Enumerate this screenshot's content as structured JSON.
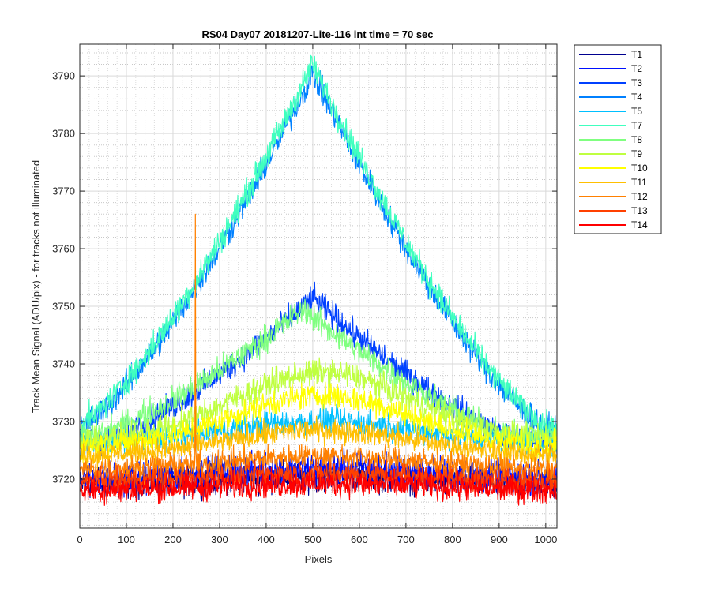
{
  "chart_data": {
    "type": "line",
    "title": "RS04 Day07 20181207-Lite-116 int time = 70 sec",
    "xlabel": "Pixels",
    "ylabel": "Track Mean Signal (ADU/pix) - for tracks not illuminated",
    "xlim": [
      0,
      1024
    ],
    "ylim": [
      3711.5,
      3795.5
    ],
    "xticks": [
      0,
      100,
      200,
      300,
      400,
      500,
      600,
      700,
      800,
      900,
      1000
    ],
    "yticks": [
      3720,
      3730,
      3740,
      3750,
      3760,
      3770,
      3780,
      3790
    ],
    "grid": true,
    "minor_grid": true,
    "legend_position": "outside-right-top",
    "series": [
      {
        "name": "T1",
        "color": "#00008f",
        "base": 3719.0,
        "peak": 1.5,
        "center": 520,
        "width": 400,
        "noise": 2.2
      },
      {
        "name": "T2",
        "color": "#0010ff",
        "base": 3720.0,
        "peak": 2.0,
        "center": 520,
        "width": 400,
        "noise": 2.4
      },
      {
        "name": "T3",
        "color": "#0040ff",
        "base": 3726.5,
        "peak": 25.0,
        "center": 500,
        "width": 300,
        "noise": 2.0
      },
      {
        "name": "T4",
        "color": "#0080ff",
        "base": 3728.5,
        "peak": 62.0,
        "center": 500,
        "width": 330,
        "noise": 2.0
      },
      {
        "name": "T5",
        "color": "#00c0ff",
        "base": 3726.0,
        "peak": 4.0,
        "center": 520,
        "width": 380,
        "noise": 2.0
      },
      {
        "name": "T7",
        "color": "#40ffbf",
        "base": 3729.0,
        "peak": 63.0,
        "center": 500,
        "width": 330,
        "noise": 2.0
      },
      {
        "name": "T8",
        "color": "#80ff80",
        "base": 3727.5,
        "peak": 22.0,
        "center": 480,
        "width": 300,
        "noise": 2.0
      },
      {
        "name": "T9",
        "color": "#bfff40",
        "base": 3726.5,
        "peak": 12.0,
        "center": 520,
        "width": 340,
        "noise": 2.0
      },
      {
        "name": "T10",
        "color": "#ffff00",
        "base": 3725.5,
        "peak": 9.0,
        "center": 520,
        "width": 340,
        "noise": 2.0
      },
      {
        "name": "T11",
        "color": "#ffbf00",
        "base": 3724.0,
        "peak": 4.5,
        "center": 520,
        "width": 360,
        "noise": 1.8
      },
      {
        "name": "T12",
        "color": "#ff8000",
        "base": 3721.5,
        "peak": 2.5,
        "center": 520,
        "width": 380,
        "noise": 1.8,
        "spike": {
          "x": 248,
          "y": 3766
        }
      },
      {
        "name": "T13",
        "color": "#ff4000",
        "base": 3719.5,
        "peak": 1.5,
        "center": 520,
        "width": 400,
        "noise": 1.8
      },
      {
        "name": "T14",
        "color": "#ff0000",
        "base": 3718.0,
        "peak": 1.2,
        "center": 520,
        "width": 400,
        "noise": 2.0
      }
    ]
  }
}
